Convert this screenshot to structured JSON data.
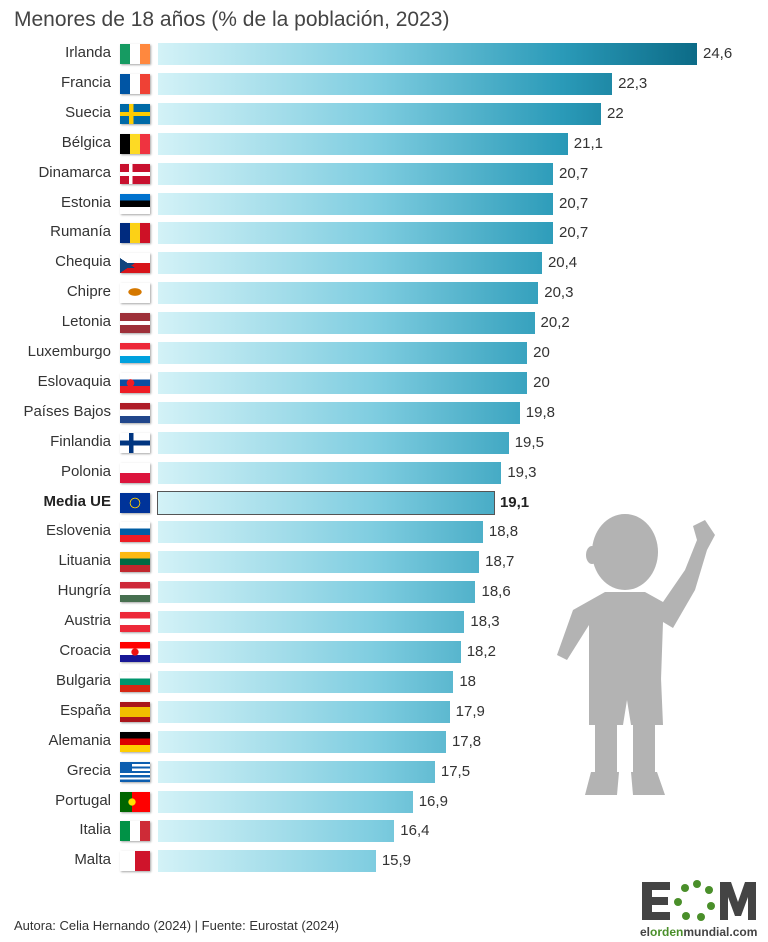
{
  "chart_data": {
    "type": "bar",
    "orientation": "horizontal",
    "title": "Menores de 18 años (% de la población, 2023)",
    "xlim": [
      10,
      24.6
    ],
    "grid": false,
    "colors": {
      "bar_start": "#d3f2f7",
      "bar_end": "#0c6b87"
    },
    "highlight": "Media UE",
    "categories": [
      "Irlanda",
      "Francia",
      "Suecia",
      "Bélgica",
      "Dinamarca",
      "Estonia",
      "Rumanía",
      "Chequia",
      "Chipre",
      "Letonia",
      "Luxemburgo",
      "Eslovaquia",
      "Países Bajos",
      "Finlandia",
      "Polonia",
      "Media UE",
      "Eslovenia",
      "Lituania",
      "Hungría",
      "Austria",
      "Croacia",
      "Bulgaria",
      "España",
      "Alemania",
      "Grecia",
      "Portugal",
      "Italia",
      "Malta"
    ],
    "values": [
      24.6,
      22.3,
      22,
      21.1,
      20.7,
      20.7,
      20.7,
      20.4,
      20.3,
      20.2,
      20,
      20,
      19.8,
      19.5,
      19.3,
      19.1,
      18.8,
      18.7,
      18.6,
      18.3,
      18.2,
      18,
      17.9,
      17.8,
      17.5,
      16.9,
      16.4,
      15.9
    ],
    "labels": [
      "24,6",
      "22,3",
      "22",
      "21,1",
      "20,7",
      "20,7",
      "20,7",
      "20,4",
      "20,3",
      "20,2",
      "20",
      "20",
      "19,8",
      "19,5",
      "19,3",
      "19,1",
      "18,8",
      "18,7",
      "18,6",
      "18,3",
      "18,2",
      "18",
      "17,9",
      "17,8",
      "17,5",
      "16,9",
      "16,4",
      "15,9"
    ]
  },
  "footer": "Autora: Celia Hernando (2024) | Fuente: Eurostat (2024)",
  "logo": {
    "text": "EOM",
    "url_a": "el",
    "url_b": "orden",
    "url_c": "mundial.com"
  }
}
